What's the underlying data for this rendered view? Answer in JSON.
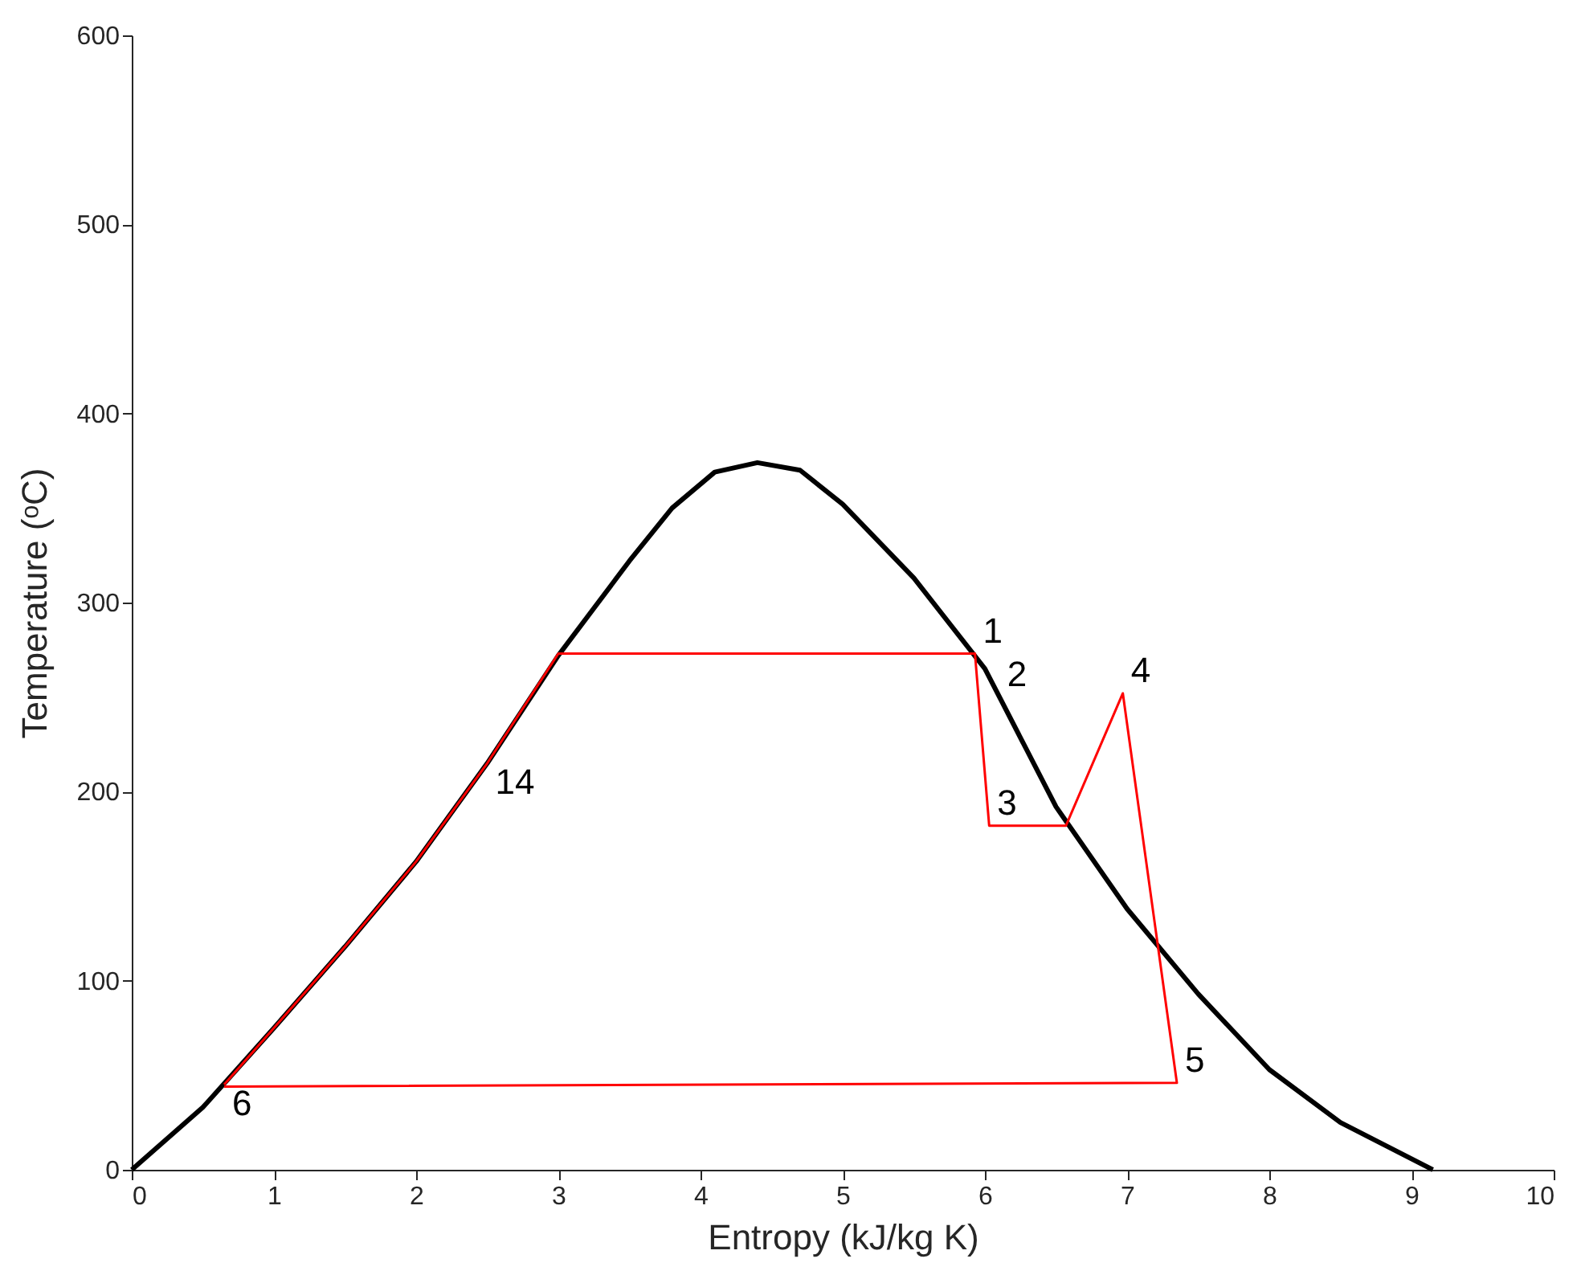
{
  "chart_data": {
    "type": "line",
    "xlabel": "Entropy (kJ/kg K)",
    "ylabel": "Temperature (ᵒC)",
    "xlim": [
      0,
      10
    ],
    "ylim": [
      0,
      600
    ],
    "xticks": [
      0,
      1,
      2,
      3,
      4,
      5,
      6,
      7,
      8,
      9,
      10
    ],
    "yticks": [
      0,
      100,
      200,
      300,
      400,
      500,
      600
    ],
    "grid": false,
    "marker": "none",
    "line_style": "solid",
    "series": [
      {
        "color": "#000000",
        "x": [
          0,
          0.5,
          1,
          1.5,
          2,
          2.5,
          3,
          3.5,
          3.8,
          4.1,
          4.4,
          4.7,
          5,
          5.5,
          6,
          6.5,
          7,
          7.5,
          8,
          8.5,
          9.15
        ],
        "values": [
          0,
          33,
          75,
          118,
          163,
          215,
          272,
          322,
          350,
          369,
          374,
          370,
          352,
          313,
          265,
          192,
          138,
          93,
          53,
          25,
          0
        ]
      },
      {
        "color": "#ff0000",
        "x": [
          0.65,
          1,
          1.5,
          2,
          2.5,
          3,
          5.93,
          6.03,
          6.57,
          6.97,
          7.35,
          0.65
        ],
        "values": [
          45,
          75,
          118,
          163,
          215,
          273,
          273,
          182,
          182,
          252,
          46,
          44
        ]
      }
    ],
    "annotations": [
      {
        "text": "1",
        "x": 5.93,
        "y": 273
      },
      {
        "text": "2",
        "x": 6.1,
        "y": 250
      },
      {
        "text": "3",
        "x": 6.03,
        "y": 182
      },
      {
        "text": "4",
        "x": 6.97,
        "y": 252
      },
      {
        "text": "5",
        "x": 7.35,
        "y": 46
      },
      {
        "text": "6",
        "x": 0.65,
        "y": 45
      },
      {
        "text": "14",
        "x": 2.5,
        "y": 215
      }
    ]
  }
}
